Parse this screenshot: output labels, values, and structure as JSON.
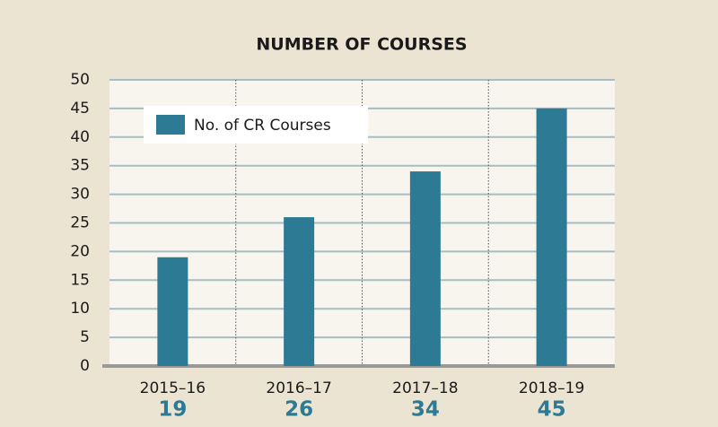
{
  "chart_data": {
    "type": "bar",
    "title": "NUMBER OF COURSES",
    "categories": [
      "2015–16",
      "2016–17",
      "2017–18",
      "2018–19"
    ],
    "series": [
      {
        "name": "No. of CR Courses",
        "color": "#2d7a94",
        "values": [
          19,
          26,
          34,
          45
        ]
      }
    ],
    "ylim": [
      0,
      50
    ],
    "yticks": [
      0,
      5,
      10,
      15,
      20,
      25,
      30,
      35,
      40,
      45,
      50
    ],
    "grid": true,
    "legend": "upper left"
  }
}
